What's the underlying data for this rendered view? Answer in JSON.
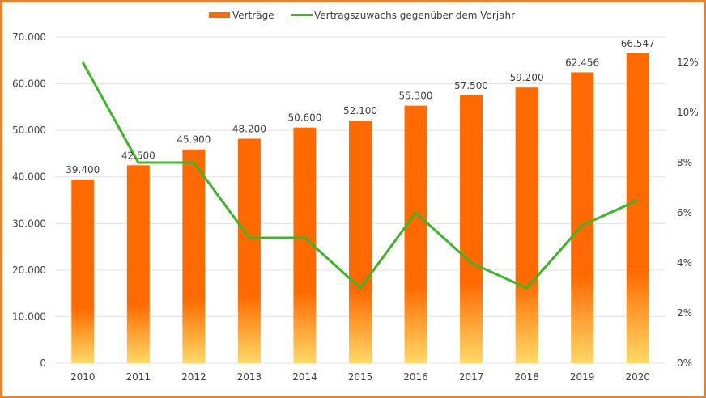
{
  "chart_data": {
    "type": "bar",
    "categories": [
      "2010",
      "2011",
      "2012",
      "2013",
      "2014",
      "2015",
      "2016",
      "2017",
      "2018",
      "2019",
      "2020"
    ],
    "series": [
      {
        "name": "Verträge",
        "type": "bar",
        "axis": "left",
        "values": [
          39400,
          42500,
          45900,
          48200,
          50600,
          52100,
          55300,
          57500,
          59200,
          62456,
          66547
        ],
        "labels": [
          "39.400",
          "42.500",
          "45.900",
          "48.200",
          "50.600",
          "52.100",
          "55.300",
          "57.500",
          "59.200",
          "62.456",
          "66.547"
        ]
      },
      {
        "name": "Vertragszuwachs gegenüber dem Vorjahr",
        "type": "line",
        "axis": "right",
        "values": [
          12,
          8,
          8,
          5,
          5,
          3,
          6,
          4,
          3,
          5.5,
          6.5
        ]
      }
    ],
    "left_axis": {
      "range": [
        0,
        70000
      ],
      "ticks": [
        0,
        10000,
        20000,
        30000,
        40000,
        50000,
        60000,
        70000
      ],
      "tick_labels": [
        "0",
        "10.000",
        "20.000",
        "30.000",
        "40.000",
        "50.000",
        "60.000",
        "70.000"
      ]
    },
    "right_axis": {
      "range": [
        0,
        13
      ],
      "unit": "%",
      "ticks": [
        0,
        2,
        4,
        6,
        8,
        10,
        12
      ],
      "tick_labels": [
        "0%",
        "2%",
        "4%",
        "6%",
        "8%",
        "10%",
        "12%"
      ]
    },
    "grid": true,
    "legend": "top",
    "colors": {
      "bar_top": "#ff6a00",
      "bar_bottom": "#ffd966",
      "line": "#3cb526",
      "border": "#e8842f",
      "grid": "#e0e0e0"
    }
  }
}
